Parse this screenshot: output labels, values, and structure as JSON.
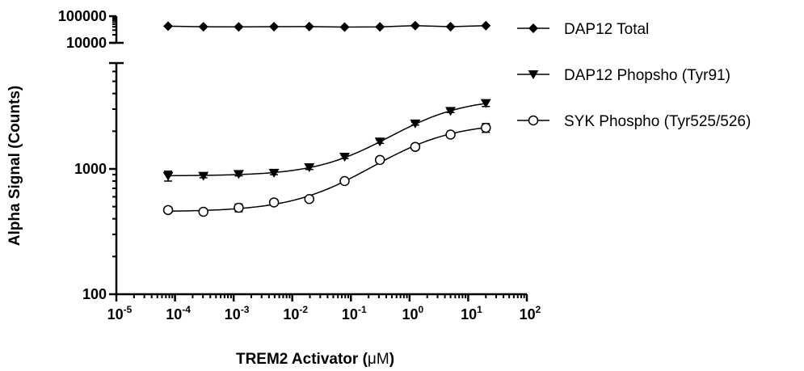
{
  "chart_data": {
    "type": "scatter",
    "title": "",
    "xlabel": "TREM2 Activator (",
    "xlabel_unit": "μM",
    "xlabel_close": ")",
    "ylabel": "Alpha Signal (Counts)",
    "x_scale": "log",
    "y_scale": "log",
    "xlim": [
      1e-05,
      100
    ],
    "x_ticks": [
      {
        "base": "10",
        "exp": "-5"
      },
      {
        "base": "10",
        "exp": "-4"
      },
      {
        "base": "10",
        "exp": "-3"
      },
      {
        "base": "10",
        "exp": "-2"
      },
      {
        "base": "10",
        "exp": "-1"
      },
      {
        "base": "10",
        "exp": "0"
      },
      {
        "base": "10",
        "exp": "1"
      },
      {
        "base": "10",
        "exp": "2"
      }
    ],
    "y_axis_broken": true,
    "y_lower_segment": {
      "ylim": [
        100,
        7000
      ],
      "ticks": [
        "100",
        "1000"
      ]
    },
    "y_upper_segment": {
      "ylim": [
        10000,
        100000
      ],
      "ticks": [
        "10000",
        "100000"
      ]
    },
    "grid": false,
    "legend_position": "right",
    "series": [
      {
        "name": "DAP12 Total",
        "marker": "diamond-filled",
        "segment": "upper",
        "fit_curve": false,
        "x": [
          7.63e-05,
          0.000305,
          0.00122,
          0.00488,
          0.0195,
          0.0781,
          0.3125,
          1.25,
          5,
          20
        ],
        "y": [
          42000,
          40000,
          39500,
          40500,
          40800,
          39000,
          39800,
          44000,
          40500,
          44000
        ],
        "error": [
          0,
          0,
          0,
          0,
          0,
          0,
          0,
          1000,
          0,
          0
        ]
      },
      {
        "name": "DAP12 Phopsho (Tyr91)",
        "marker": "triangle-down-filled",
        "segment": "lower",
        "fit_curve": true,
        "x": [
          7.63e-05,
          0.000305,
          0.00122,
          0.00488,
          0.0195,
          0.0781,
          0.3125,
          1.25,
          5,
          20
        ],
        "y": [
          880,
          880,
          910,
          930,
          1030,
          1250,
          1650,
          2300,
          2900,
          3350
        ],
        "error": [
          80,
          30,
          30,
          30,
          40,
          40,
          50,
          60,
          80,
          200
        ]
      },
      {
        "name": "SYK Phospho (Tyr525/526)",
        "marker": "circle-open",
        "segment": "lower",
        "fit_curve": true,
        "x": [
          7.63e-05,
          0.000305,
          0.00122,
          0.00488,
          0.0195,
          0.0781,
          0.3125,
          1.25,
          5,
          20
        ],
        "y": [
          470,
          455,
          490,
          540,
          575,
          800,
          1180,
          1500,
          1880,
          2130
        ],
        "error": [
          10,
          10,
          35,
          15,
          15,
          20,
          30,
          40,
          50,
          170
        ]
      }
    ]
  }
}
